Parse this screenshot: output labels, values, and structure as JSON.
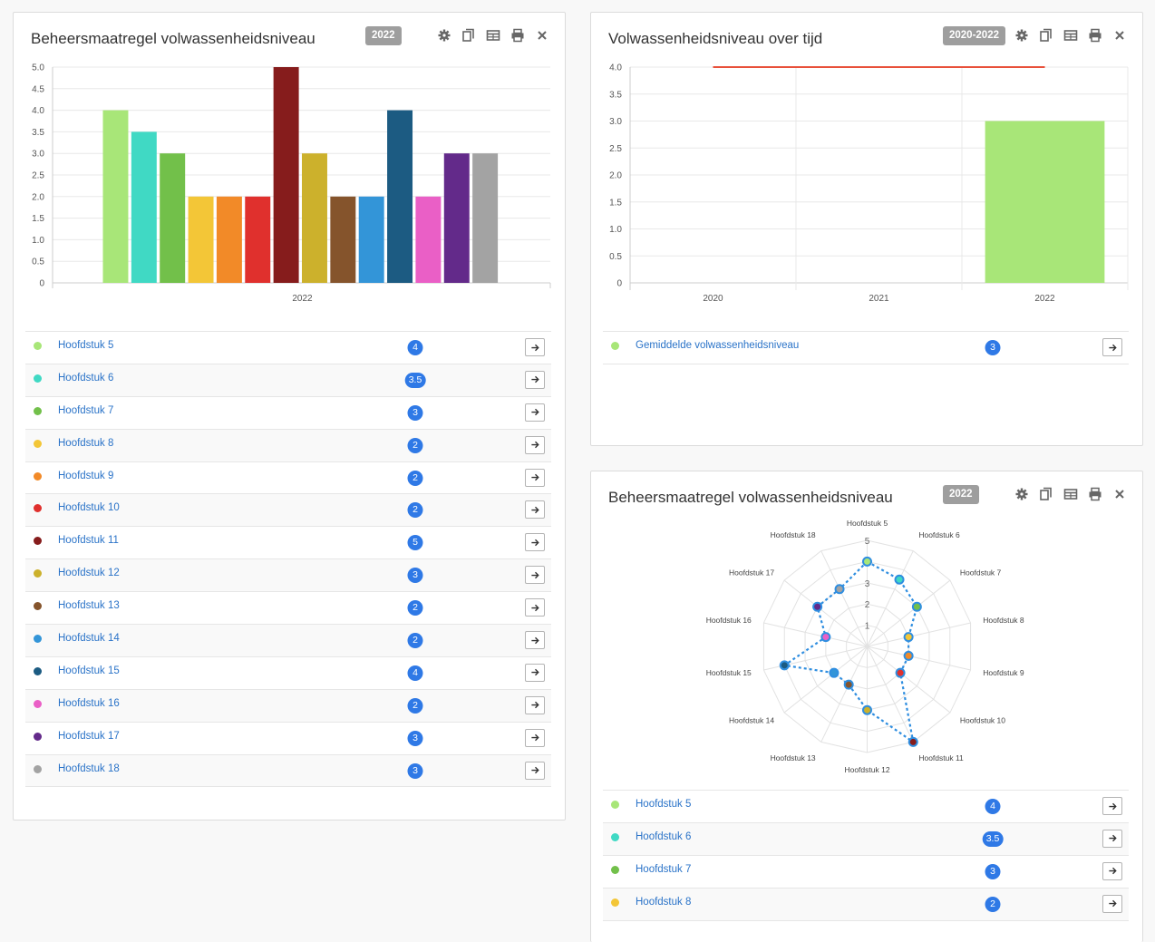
{
  "panel1": {
    "title": "Beheersmaatregel volwassenheidsniveau",
    "badge": "2022",
    "legend": [
      {
        "label": "Hoofdstuk 5",
        "value": "4",
        "color": "#a8e678"
      },
      {
        "label": "Hoofdstuk 6",
        "value": "3.5",
        "color": "#40d9c4"
      },
      {
        "label": "Hoofdstuk 7",
        "value": "3",
        "color": "#72c04a"
      },
      {
        "label": "Hoofdstuk 8",
        "value": "2",
        "color": "#f3c637"
      },
      {
        "label": "Hoofdstuk 9",
        "value": "2",
        "color": "#f28a28"
      },
      {
        "label": "Hoofdstuk 10",
        "value": "2",
        "color": "#e0302d"
      },
      {
        "label": "Hoofdstuk 11",
        "value": "5",
        "color": "#861c1c"
      },
      {
        "label": "Hoofdstuk 12",
        "value": "3",
        "color": "#ccb12c"
      },
      {
        "label": "Hoofdstuk 13",
        "value": "2",
        "color": "#85542c"
      },
      {
        "label": "Hoofdstuk 14",
        "value": "2",
        "color": "#3395d8"
      },
      {
        "label": "Hoofdstuk 15",
        "value": "4",
        "color": "#1c5b82"
      },
      {
        "label": "Hoofdstuk 16",
        "value": "2",
        "color": "#ea5fc6"
      },
      {
        "label": "Hoofdstuk 17",
        "value": "3",
        "color": "#632a8a"
      },
      {
        "label": "Hoofdstuk 18",
        "value": "3",
        "color": "#a3a3a3"
      }
    ]
  },
  "panel2": {
    "title": "Volwassenheidsniveau over tijd",
    "badge": "2020-2022",
    "legend": [
      {
        "label": "Gemiddelde volwassenheidsniveau",
        "value": "3",
        "color": "#a8e678"
      }
    ]
  },
  "panel3": {
    "title": "Beheersmaatregel volwassenheidsniveau",
    "badge": "2022",
    "legend": [
      {
        "label": "Hoofdstuk 5",
        "value": "4",
        "color": "#a8e678"
      },
      {
        "label": "Hoofdstuk 6",
        "value": "3.5",
        "color": "#40d9c4"
      },
      {
        "label": "Hoofdstuk 7",
        "value": "3",
        "color": "#72c04a"
      },
      {
        "label": "Hoofdstuk 8",
        "value": "2",
        "color": "#f3c637"
      }
    ]
  },
  "chart_data": [
    {
      "type": "bar",
      "categories": [
        "2022"
      ],
      "series": [
        {
          "name": "Hoofdstuk 5",
          "values": [
            4
          ],
          "color": "#a8e678"
        },
        {
          "name": "Hoofdstuk 6",
          "values": [
            3.5
          ],
          "color": "#40d9c4"
        },
        {
          "name": "Hoofdstuk 7",
          "values": [
            3
          ],
          "color": "#72c04a"
        },
        {
          "name": "Hoofdstuk 8",
          "values": [
            2
          ],
          "color": "#f3c637"
        },
        {
          "name": "Hoofdstuk 9",
          "values": [
            2
          ],
          "color": "#f28a28"
        },
        {
          "name": "Hoofdstuk 10",
          "values": [
            2
          ],
          "color": "#e0302d"
        },
        {
          "name": "Hoofdstuk 11",
          "values": [
            5
          ],
          "color": "#861c1c"
        },
        {
          "name": "Hoofdstuk 12",
          "values": [
            3
          ],
          "color": "#ccb12c"
        },
        {
          "name": "Hoofdstuk 13",
          "values": [
            2
          ],
          "color": "#85542c"
        },
        {
          "name": "Hoofdstuk 14",
          "values": [
            2
          ],
          "color": "#3395d8"
        },
        {
          "name": "Hoofdstuk 15",
          "values": [
            4
          ],
          "color": "#1c5b82"
        },
        {
          "name": "Hoofdstuk 16",
          "values": [
            2
          ],
          "color": "#ea5fc6"
        },
        {
          "name": "Hoofdstuk 17",
          "values": [
            3
          ],
          "color": "#632a8a"
        },
        {
          "name": "Hoofdstuk 18",
          "values": [
            3
          ],
          "color": "#a3a3a3"
        }
      ],
      "yticks": [
        "0",
        "0.5",
        "1.0",
        "1.5",
        "2.0",
        "2.5",
        "3.0",
        "3.5",
        "4.0",
        "4.5",
        "5.0"
      ],
      "ylim": [
        0,
        5
      ],
      "grid": true
    },
    {
      "type": "bar",
      "categories": [
        "2020",
        "2021",
        "2022"
      ],
      "series": [
        {
          "name": "Gemiddelde volwassenheidsniveau",
          "values": [
            null,
            null,
            3
          ],
          "color": "#a8e678"
        }
      ],
      "reference_line": {
        "value": 4,
        "from": "2020",
        "to": "2022",
        "color": "#e8503a"
      },
      "yticks": [
        "0",
        "0.5",
        "1.0",
        "1.5",
        "2.0",
        "2.5",
        "3.0",
        "3.5",
        "4.0"
      ],
      "ylim": [
        0,
        4
      ],
      "grid": true
    },
    {
      "type": "radar",
      "categories": [
        "Hoofdstuk 5",
        "Hoofdstuk 6",
        "Hoofdstuk 7",
        "Hoofdstuk 8",
        "Hoofdstuk 9",
        "Hoofdstuk 10",
        "Hoofdstuk 11",
        "Hoofdstuk 12",
        "Hoofdstuk 13",
        "Hoofdstuk 14",
        "Hoofdstuk 15",
        "Hoofdstuk 16",
        "Hoofdstuk 17",
        "Hoofdstuk 18"
      ],
      "values": [
        4,
        3.5,
        3,
        2,
        2,
        2,
        5,
        3,
        2,
        2,
        4,
        2,
        3,
        3
      ],
      "point_colors": [
        "#a8e678",
        "#40d9c4",
        "#72c04a",
        "#f3c637",
        "#f28a28",
        "#e0302d",
        "#861c1c",
        "#ccb12c",
        "#85542c",
        "#3395d8",
        "#1c5b82",
        "#ea5fc6",
        "#632a8a",
        "#a3a3a3"
      ],
      "line_color": "#2f8ee0",
      "rticks": [
        "1",
        "2",
        "3",
        "4",
        "5"
      ],
      "rlim": [
        0,
        5
      ]
    }
  ]
}
